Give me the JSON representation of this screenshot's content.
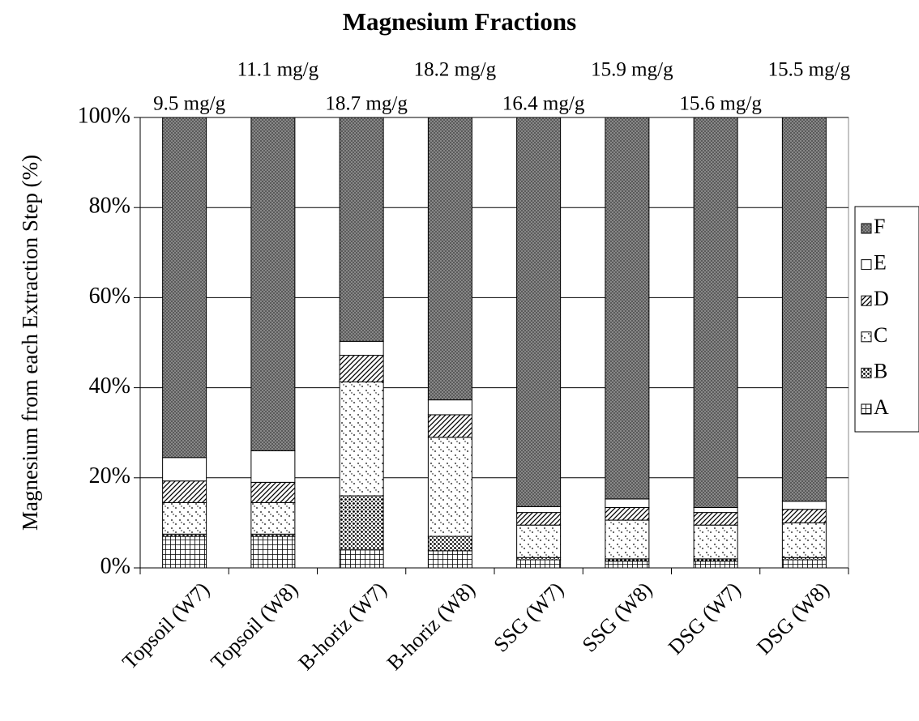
{
  "chart_data": {
    "type": "stacked_bar",
    "title": "Magnesium Fractions",
    "y_label": "Magnesium from each Extraction Step (%)",
    "categories": [
      "Topsoil (W7)",
      "Topsoil (W8)",
      "B-horiz (W7)",
      "B-horiz (W8)",
      "SSG (W7)",
      "SSG (W8)",
      "DSG (W7)",
      "DSG (W8)"
    ],
    "annotations": [
      "9.5 mg/g",
      "11.1 mg/g",
      "18.7 mg/g",
      "18.2 mg/g",
      "16.4 mg/g",
      "15.9 mg/g",
      "15.6 mg/g",
      "15.5 mg/g"
    ],
    "series": [
      {
        "name": "A",
        "pattern": "grid",
        "values": [
          7,
          7,
          4,
          3.8,
          1.8,
          1.5,
          1.5,
          1.8
        ]
      },
      {
        "name": "B",
        "pattern": "dense-dots",
        "values": [
          0.5,
          0.5,
          12,
          3.2,
          0.5,
          0.5,
          0.5,
          0.5
        ]
      },
      {
        "name": "C",
        "pattern": "sparse-dots",
        "values": [
          7,
          7,
          25.3,
          22,
          7.2,
          8.6,
          7.5,
          7.7
        ]
      },
      {
        "name": "D",
        "pattern": "diagonal",
        "values": [
          4.8,
          4.5,
          5.9,
          5,
          2.8,
          2.8,
          2.8,
          3
        ]
      },
      {
        "name": "E",
        "pattern": "white",
        "values": [
          5.2,
          7,
          3.1,
          3.3,
          1.3,
          1.9,
          1.1,
          1.8
        ]
      },
      {
        "name": "F",
        "pattern": "crosshatch",
        "values": [
          75.5,
          74,
          49.7,
          62.7,
          86.4,
          84.7,
          86.6,
          85.2
        ]
      }
    ],
    "ylim": [
      0,
      100
    ],
    "yticks": [
      {
        "value": 0,
        "label": "0%"
      },
      {
        "value": 20,
        "label": "20%"
      },
      {
        "value": 40,
        "label": "40%"
      },
      {
        "value": 60,
        "label": "60%"
      },
      {
        "value": 80,
        "label": "80%"
      },
      {
        "value": 100,
        "label": "100%"
      }
    ],
    "grid": true,
    "legend": "right"
  }
}
